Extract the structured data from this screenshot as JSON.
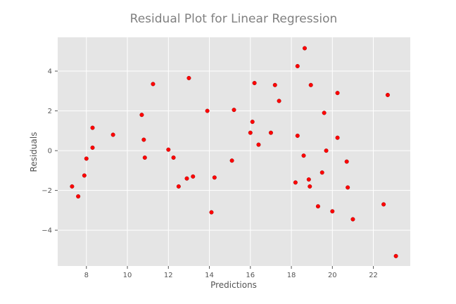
{
  "chart_data": {
    "type": "scatter",
    "title": "Residual Plot for Linear Regression",
    "xlabel": "Predictions",
    "ylabel": "Residuals",
    "xlim": [
      6.6,
      23.8
    ],
    "ylim": [
      -5.8,
      5.7
    ],
    "x_ticks": [
      8,
      10,
      12,
      14,
      16,
      18,
      20,
      22
    ],
    "y_ticks": [
      -4,
      -2,
      0,
      2,
      4
    ],
    "x_tick_labels": [
      "8",
      "10",
      "12",
      "14",
      "16",
      "18",
      "20",
      "22"
    ],
    "y_tick_labels": [
      "−4",
      "−2",
      "0",
      "2",
      "4"
    ],
    "grid": true,
    "colors": {
      "background": "#e5e5e5",
      "grid": "#ffffff",
      "marker": "#ff0000",
      "marker_edge": "#8b0000"
    },
    "points": [
      {
        "x": 7.3,
        "y": -1.8
      },
      {
        "x": 7.6,
        "y": -2.3
      },
      {
        "x": 7.9,
        "y": -1.25
      },
      {
        "x": 8.0,
        "y": -0.4
      },
      {
        "x": 8.3,
        "y": 1.15
      },
      {
        "x": 8.3,
        "y": 0.15
      },
      {
        "x": 9.3,
        "y": 0.8
      },
      {
        "x": 10.7,
        "y": 1.8
      },
      {
        "x": 10.8,
        "y": 0.55
      },
      {
        "x": 10.85,
        "y": -0.35
      },
      {
        "x": 11.25,
        "y": 3.35
      },
      {
        "x": 12.0,
        "y": 0.05
      },
      {
        "x": 12.25,
        "y": -0.35
      },
      {
        "x": 12.5,
        "y": -1.8
      },
      {
        "x": 12.9,
        "y": -1.4
      },
      {
        "x": 13.0,
        "y": 3.65
      },
      {
        "x": 13.2,
        "y": -1.3
      },
      {
        "x": 13.9,
        "y": 2.0
      },
      {
        "x": 14.1,
        "y": -3.1
      },
      {
        "x": 14.25,
        "y": -1.35
      },
      {
        "x": 15.1,
        "y": -0.5
      },
      {
        "x": 15.2,
        "y": 2.05
      },
      {
        "x": 16.0,
        "y": 0.9
      },
      {
        "x": 16.1,
        "y": 1.45
      },
      {
        "x": 16.2,
        "y": 3.4
      },
      {
        "x": 16.4,
        "y": 0.3
      },
      {
        "x": 17.0,
        "y": 0.9
      },
      {
        "x": 17.2,
        "y": 3.3
      },
      {
        "x": 17.4,
        "y": 2.5
      },
      {
        "x": 18.2,
        "y": -1.6
      },
      {
        "x": 18.3,
        "y": 4.25
      },
      {
        "x": 18.3,
        "y": 0.75
      },
      {
        "x": 18.6,
        "y": -0.25
      },
      {
        "x": 18.65,
        "y": 5.15
      },
      {
        "x": 18.85,
        "y": -1.45
      },
      {
        "x": 18.9,
        "y": -1.8
      },
      {
        "x": 18.95,
        "y": 3.3
      },
      {
        "x": 19.3,
        "y": -2.8
      },
      {
        "x": 19.5,
        "y": -1.1
      },
      {
        "x": 19.6,
        "y": 1.9
      },
      {
        "x": 19.7,
        "y": 0.0
      },
      {
        "x": 20.0,
        "y": -3.05
      },
      {
        "x": 20.25,
        "y": 2.9
      },
      {
        "x": 20.25,
        "y": 0.65
      },
      {
        "x": 20.7,
        "y": -0.55
      },
      {
        "x": 20.75,
        "y": -1.85
      },
      {
        "x": 21.0,
        "y": -3.45
      },
      {
        "x": 22.5,
        "y": -2.7
      },
      {
        "x": 22.7,
        "y": 2.8
      },
      {
        "x": 23.1,
        "y": -5.3
      }
    ]
  }
}
